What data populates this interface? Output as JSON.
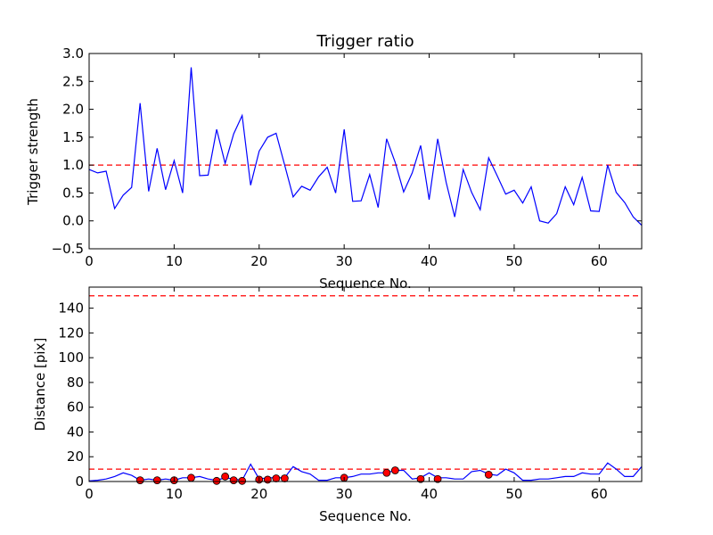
{
  "chart_data": [
    {
      "type": "line",
      "title": "Trigger ratio",
      "xlabel": "Sequence No.",
      "ylabel": "Trigger strength",
      "xlim": [
        0,
        65
      ],
      "ylim": [
        -0.5,
        3.0
      ],
      "xticks": [
        0,
        10,
        20,
        30,
        40,
        50,
        60
      ],
      "yticks": [
        -0.5,
        0.0,
        0.5,
        1.0,
        1.5,
        2.0,
        2.5,
        3.0
      ],
      "ytick_labels": [
        "−0.5",
        "0.0",
        "0.5",
        "1.0",
        "1.5",
        "2.0",
        "2.5",
        "3.0"
      ],
      "colors": {
        "line": "#0000ff",
        "threshold": "#ff0000"
      },
      "threshold": 1.0,
      "series": [
        {
          "x": [
            0,
            1,
            2,
            3,
            4,
            5,
            6,
            7,
            8,
            9,
            10,
            11,
            12,
            13,
            14,
            15,
            16,
            17,
            18,
            19,
            20,
            21,
            22,
            23,
            24,
            25,
            26,
            27,
            28,
            29,
            30,
            31,
            32,
            33,
            34,
            35,
            36,
            37,
            38,
            39,
            40,
            41,
            42,
            43,
            44,
            45,
            46,
            47,
            48,
            49,
            50,
            51,
            52,
            53,
            54,
            55,
            56,
            57,
            58,
            59,
            60,
            61,
            62,
            63,
            64,
            65
          ],
          "values": [
            0.92,
            0.86,
            0.89,
            0.22,
            0.46,
            0.6,
            2.11,
            0.53,
            1.3,
            0.56,
            1.08,
            0.5,
            2.75,
            0.81,
            0.82,
            1.64,
            1.03,
            1.56,
            1.89,
            0.64,
            1.25,
            1.5,
            1.57,
            1.0,
            0.43,
            0.62,
            0.55,
            0.79,
            0.96,
            0.5,
            1.64,
            0.35,
            0.36,
            0.83,
            0.24,
            1.47,
            1.05,
            0.52,
            0.86,
            1.35,
            0.38,
            1.47,
            0.69,
            0.07,
            0.92,
            0.51,
            0.2,
            1.13,
            0.81,
            0.48,
            0.55,
            0.32,
            0.61,
            0.0,
            -0.04,
            0.13,
            0.61,
            0.29,
            0.78,
            0.18,
            0.17,
            1.0,
            0.51,
            0.33,
            0.07,
            -0.08
          ]
        }
      ]
    },
    {
      "type": "line",
      "title": "",
      "xlabel": "Sequence No.",
      "ylabel": "Distance [pix]",
      "xlim": [
        0,
        65
      ],
      "ylim": [
        0,
        157
      ],
      "xticks": [
        0,
        10,
        20,
        30,
        40,
        50,
        60
      ],
      "yticks": [
        0,
        20,
        40,
        60,
        80,
        100,
        120,
        140
      ],
      "colors": {
        "line": "#0000ff",
        "threshold": "#ff0000",
        "marker": "#ff0000"
      },
      "thresholds": [
        10,
        150
      ],
      "series": [
        {
          "x": [
            0,
            1,
            2,
            3,
            4,
            5,
            6,
            7,
            8,
            9,
            10,
            11,
            12,
            13,
            14,
            15,
            16,
            17,
            18,
            19,
            20,
            21,
            22,
            23,
            24,
            25,
            26,
            27,
            28,
            29,
            30,
            31,
            32,
            33,
            34,
            35,
            36,
            37,
            38,
            39,
            40,
            41,
            42,
            43,
            44,
            45,
            46,
            47,
            48,
            49,
            50,
            51,
            52,
            53,
            54,
            55,
            56,
            57,
            58,
            59,
            60,
            61,
            62,
            63,
            64,
            65
          ],
          "values": [
            0.5,
            1,
            2,
            4,
            7,
            5,
            1,
            2,
            1,
            2,
            1,
            3,
            3,
            4,
            2,
            1,
            3,
            2,
            1,
            14,
            2,
            3,
            3,
            3,
            12,
            8,
            6,
            1,
            1,
            3,
            3,
            4,
            6,
            6,
            7,
            7,
            9,
            9,
            2,
            3,
            7,
            3,
            3,
            2,
            2,
            8,
            9,
            6,
            5,
            10,
            7,
            1,
            1,
            2,
            2,
            3,
            4,
            4,
            7,
            6,
            6,
            15,
            10,
            4,
            4,
            12
          ]
        },
        {
          "markers_x": [
            6,
            8,
            10,
            12,
            15,
            16,
            17,
            18,
            20,
            21,
            22,
            23,
            30,
            35,
            36,
            39,
            41,
            47
          ],
          "markers_y": [
            1,
            1,
            1,
            3,
            0.5,
            4,
            1,
            0.5,
            1.5,
            1.5,
            2.5,
            2.5,
            3,
            7,
            9,
            2,
            2,
            5.5
          ]
        }
      ]
    }
  ]
}
